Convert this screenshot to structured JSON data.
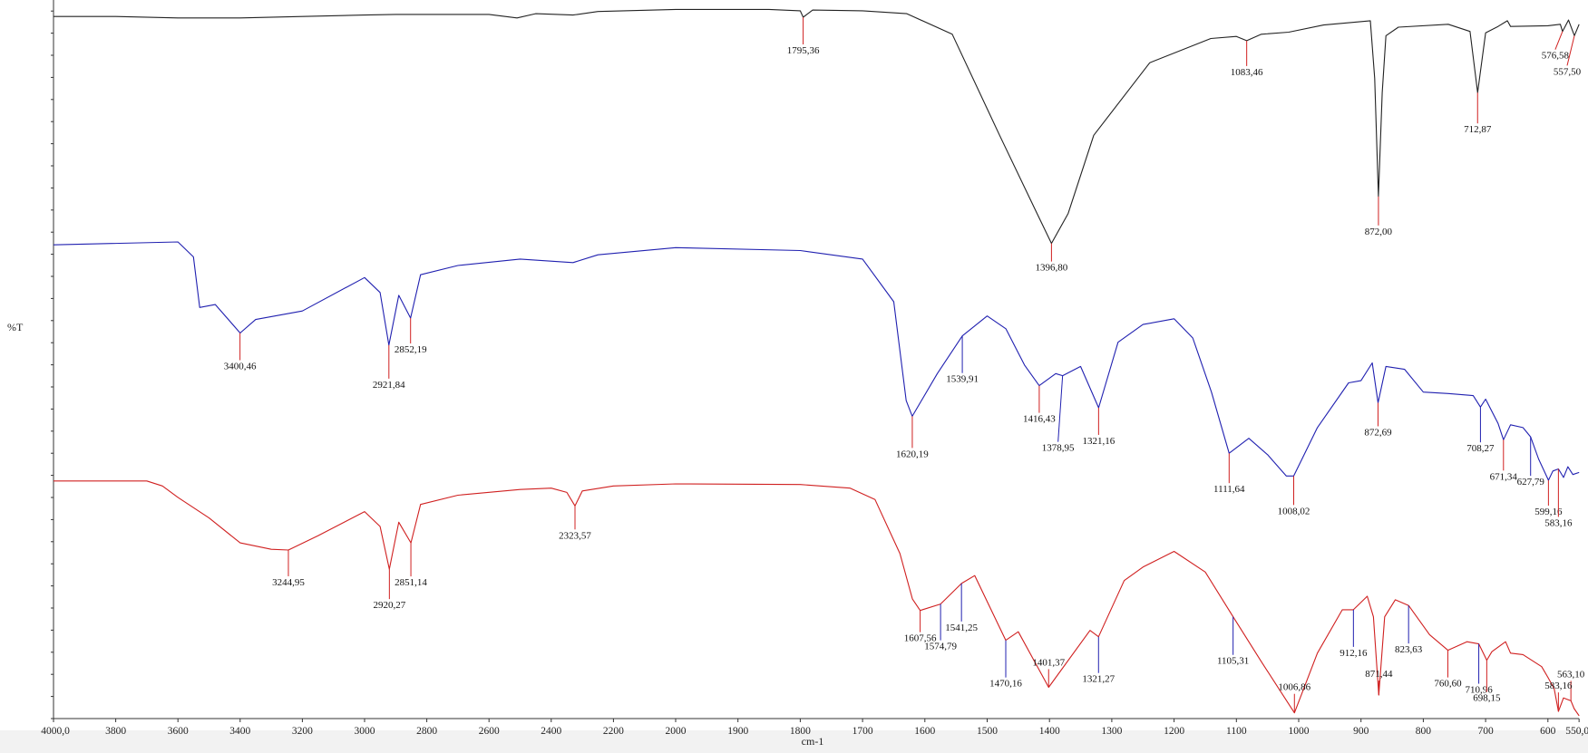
{
  "chart_data": {
    "type": "line",
    "title": "",
    "xlabel": "cm-1",
    "ylabel": "%T",
    "xlim": [
      4000,
      550
    ],
    "x_reversed": true,
    "x_scale_break": 2000,
    "ylim": [
      0,
      100
    ],
    "grid": false,
    "legend": "none",
    "x_ticks": [
      {
        "value": 4000,
        "label": "4000,0"
      },
      {
        "value": 3800,
        "label": "3800"
      },
      {
        "value": 3600,
        "label": "3600"
      },
      {
        "value": 3400,
        "label": "3400"
      },
      {
        "value": 3200,
        "label": "3200"
      },
      {
        "value": 3000,
        "label": "3000"
      },
      {
        "value": 2800,
        "label": "2800"
      },
      {
        "value": 2600,
        "label": "2600"
      },
      {
        "value": 2400,
        "label": "2400"
      },
      {
        "value": 2200,
        "label": "2200"
      },
      {
        "value": 2000,
        "label": "2000"
      },
      {
        "value": 1900,
        "label": "1900"
      },
      {
        "value": 1800,
        "label": "1800"
      },
      {
        "value": 1700,
        "label": "1700"
      },
      {
        "value": 1600,
        "label": "1600"
      },
      {
        "value": 1500,
        "label": "1500"
      },
      {
        "value": 1400,
        "label": "1400"
      },
      {
        "value": 1300,
        "label": "1300"
      },
      {
        "value": 1200,
        "label": "1200"
      },
      {
        "value": 1100,
        "label": "1100"
      },
      {
        "value": 1000,
        "label": "1000"
      },
      {
        "value": 900,
        "label": "900"
      },
      {
        "value": 800,
        "label": "800"
      },
      {
        "value": 700,
        "label": "700"
      },
      {
        "value": 600,
        "label": "600"
      },
      {
        "value": 550,
        "label": "550,0"
      }
    ],
    "series": [
      {
        "color": "#222222",
        "points": [
          [
            4000,
            98.7
          ],
          [
            3800,
            98.7
          ],
          [
            3600,
            98.5
          ],
          [
            3400,
            98.5
          ],
          [
            3200,
            98.7
          ],
          [
            3000,
            98.9
          ],
          [
            2900,
            99.0
          ],
          [
            2600,
            99.0
          ],
          [
            2510,
            98.5
          ],
          [
            2450,
            99.1
          ],
          [
            2330,
            98.9
          ],
          [
            2250,
            99.4
          ],
          [
            2000,
            99.7
          ],
          [
            1850,
            99.7
          ],
          [
            1800,
            99.5
          ],
          [
            1795.36,
            98.6
          ],
          [
            1780,
            99.6
          ],
          [
            1700,
            99.5
          ],
          [
            1629,
            99.1
          ],
          [
            1556,
            96.2
          ],
          [
            1480,
            82
          ],
          [
            1420,
            71
          ],
          [
            1396.8,
            66.8
          ],
          [
            1370,
            71
          ],
          [
            1329,
            82.0
          ],
          [
            1239,
            92.2
          ],
          [
            1141,
            95.6
          ],
          [
            1100,
            95.9
          ],
          [
            1083.46,
            95.3
          ],
          [
            1060,
            96.2
          ],
          [
            1016,
            96.5
          ],
          [
            960,
            97.5
          ],
          [
            885,
            98.1
          ],
          [
            878,
            90
          ],
          [
            872.0,
            73.4
          ],
          [
            866,
            88
          ],
          [
            860,
            96
          ],
          [
            840,
            97.2
          ],
          [
            760,
            97.6
          ],
          [
            725,
            96.6
          ],
          [
            712.87,
            88.0
          ],
          [
            700,
            96.4
          ],
          [
            680,
            97.3
          ],
          [
            665,
            98.1
          ],
          [
            660,
            97.3
          ],
          [
            600,
            97.4
          ],
          [
            580,
            97.6
          ],
          [
            576.58,
            96.6
          ],
          [
            567,
            98.2
          ],
          [
            557.5,
            96.0
          ],
          [
            550,
            97.6
          ]
        ]
      },
      {
        "color": "#2020b0",
        "points": [
          [
            4000,
            66.6
          ],
          [
            3600,
            67.0
          ],
          [
            3550,
            64.9
          ],
          [
            3530,
            57.8
          ],
          [
            3480,
            58.2
          ],
          [
            3400,
            54.2
          ],
          [
            3350,
            56.1
          ],
          [
            3200,
            57.3
          ],
          [
            3000,
            62.0
          ],
          [
            2950,
            59.9
          ],
          [
            2921.84,
            52.5
          ],
          [
            2890,
            59.5
          ],
          [
            2852.19,
            56.3
          ],
          [
            2820,
            62.4
          ],
          [
            2700,
            63.7
          ],
          [
            2500,
            64.6
          ],
          [
            2330,
            64.1
          ],
          [
            2250,
            65.2
          ],
          [
            2000,
            66.2
          ],
          [
            1800,
            65.8
          ],
          [
            1700,
            64.6
          ],
          [
            1650,
            58.6
          ],
          [
            1630,
            44.7
          ],
          [
            1620.19,
            42.5
          ],
          [
            1580,
            48.5
          ],
          [
            1539.91,
            53.8
          ],
          [
            1500,
            56.6
          ],
          [
            1470,
            54.8
          ],
          [
            1440,
            49.7
          ],
          [
            1416.43,
            46.8
          ],
          [
            1390,
            48.5
          ],
          [
            1378.95,
            48.2
          ],
          [
            1350,
            49.5
          ],
          [
            1321.16,
            43.7
          ],
          [
            1290,
            52.9
          ],
          [
            1250,
            55.4
          ],
          [
            1200,
            56.2
          ],
          [
            1170,
            53.5
          ],
          [
            1140,
            45.9
          ],
          [
            1111.64,
            37.3
          ],
          [
            1080,
            39.4
          ],
          [
            1050,
            37.1
          ],
          [
            1020,
            34.1
          ],
          [
            1008.02,
            34.1
          ],
          [
            970,
            40.9
          ],
          [
            920,
            47.2
          ],
          [
            900,
            47.5
          ],
          [
            882,
            50.0
          ],
          [
            872.69,
            44.4
          ],
          [
            860,
            49.5
          ],
          [
            830,
            49.1
          ],
          [
            800,
            45.9
          ],
          [
            760,
            45.7
          ],
          [
            720,
            45.4
          ],
          [
            708.27,
            43.8
          ],
          [
            700,
            44.9
          ],
          [
            680,
            41.5
          ],
          [
            671.34,
            39.2
          ],
          [
            660,
            41.3
          ],
          [
            640,
            40.9
          ],
          [
            627.79,
            39.6
          ],
          [
            615,
            36.5
          ],
          [
            599.16,
            33.5
          ],
          [
            592,
            34.8
          ],
          [
            583.16,
            35.1
          ],
          [
            575,
            33.9
          ],
          [
            568,
            35.4
          ],
          [
            560,
            34.3
          ],
          [
            550,
            34.6
          ]
        ]
      },
      {
        "color": "#d02020",
        "points": [
          [
            4000,
            33.4
          ],
          [
            3700,
            33.4
          ],
          [
            3650,
            32.7
          ],
          [
            3600,
            31.1
          ],
          [
            3500,
            28.2
          ],
          [
            3400,
            24.7
          ],
          [
            3300,
            23.8
          ],
          [
            3244.95,
            23.7
          ],
          [
            3150,
            25.7
          ],
          [
            3000,
            29.1
          ],
          [
            2950,
            27.0
          ],
          [
            2920.27,
            21.0
          ],
          [
            2890,
            27.6
          ],
          [
            2851.14,
            24.7
          ],
          [
            2820,
            30.1
          ],
          [
            2700,
            31.4
          ],
          [
            2500,
            32.2
          ],
          [
            2400,
            32.4
          ],
          [
            2350,
            31.8
          ],
          [
            2323.57,
            29.9
          ],
          [
            2300,
            32.0
          ],
          [
            2200,
            32.7
          ],
          [
            2000,
            33.0
          ],
          [
            1800,
            32.9
          ],
          [
            1720,
            32.4
          ],
          [
            1680,
            30.8
          ],
          [
            1640,
            23.2
          ],
          [
            1620,
            16.8
          ],
          [
            1607.56,
            15.2
          ],
          [
            1574.79,
            16.1
          ],
          [
            1541.25,
            19.0
          ],
          [
            1520,
            20.1
          ],
          [
            1470.16,
            11.0
          ],
          [
            1450,
            12.2
          ],
          [
            1401.37,
            4.4
          ],
          [
            1335,
            12.4
          ],
          [
            1321.27,
            11.5
          ],
          [
            1280,
            19.4
          ],
          [
            1250,
            21.3
          ],
          [
            1200,
            23.5
          ],
          [
            1150,
            20.6
          ],
          [
            1105.31,
            14.3
          ],
          [
            1060,
            8.0
          ],
          [
            1006.86,
            0.8
          ],
          [
            970,
            9.2
          ],
          [
            930,
            15.3
          ],
          [
            912.16,
            15.3
          ],
          [
            890,
            17.2
          ],
          [
            880,
            14.3
          ],
          [
            871.44,
            3.3
          ],
          [
            862,
            14.3
          ],
          [
            845,
            16.7
          ],
          [
            823.63,
            15.9
          ],
          [
            790,
            11.8
          ],
          [
            760.6,
            9.6
          ],
          [
            730,
            10.8
          ],
          [
            710.96,
            10.5
          ],
          [
            698.15,
            8.2
          ],
          [
            690,
            9.4
          ],
          [
            668,
            10.8
          ],
          [
            660,
            9.2
          ],
          [
            640,
            9.0
          ],
          [
            610,
            7.3
          ],
          [
            600,
            5.8
          ],
          [
            590,
            4.2
          ],
          [
            583.16,
            1.0
          ],
          [
            575,
            2.9
          ],
          [
            563.1,
            2.5
          ],
          [
            558,
            1.4
          ],
          [
            550,
            0.4
          ]
        ]
      }
    ],
    "peaks": [
      {
        "series": 0,
        "x": 1795.36,
        "y": 98.6,
        "label": "1795,36",
        "line_color": "#d02020"
      },
      {
        "series": 0,
        "x": 1396.8,
        "y": 66.8,
        "label": "1396,80",
        "line_color": "#d02020"
      },
      {
        "series": 0,
        "x": 1083.46,
        "y": 95.3,
        "label": "1083,46",
        "line_color": "#d02020"
      },
      {
        "series": 0,
        "x": 872.0,
        "y": 73.4,
        "label": "872,00",
        "line_color": "#d02020"
      },
      {
        "series": 0,
        "x": 712.87,
        "y": 88.0,
        "label": "712,87",
        "line_color": "#d02020"
      },
      {
        "series": 0,
        "x": 576.58,
        "y": 96.6,
        "label": "576,58",
        "line_color": "#d02020"
      },
      {
        "series": 0,
        "x": 557.5,
        "y": 96.0,
        "label": "557,50",
        "line_color": "#d02020"
      },
      {
        "series": 1,
        "x": 3400.46,
        "y": 54.2,
        "label": "3400,46",
        "line_color": "#d02020"
      },
      {
        "series": 1,
        "x": 2921.84,
        "y": 52.5,
        "label": "2921,84",
        "line_color": "#d02020"
      },
      {
        "series": 1,
        "x": 2852.19,
        "y": 56.3,
        "label": "2852,19",
        "line_color": "#d02020"
      },
      {
        "series": 1,
        "x": 1620.19,
        "y": 42.5,
        "label": "1620,19",
        "line_color": "#d02020"
      },
      {
        "series": 1,
        "x": 1539.91,
        "y": 53.8,
        "label": "1539,91",
        "line_color": "#2020b0"
      },
      {
        "series": 1,
        "x": 1416.43,
        "y": 46.8,
        "label": "1416,43",
        "line_color": "#d02020"
      },
      {
        "series": 1,
        "x": 1378.95,
        "y": 48.2,
        "label": "1378,95",
        "line_color": "#2020b0"
      },
      {
        "series": 1,
        "x": 1321.16,
        "y": 43.7,
        "label": "1321,16",
        "line_color": "#d02020"
      },
      {
        "series": 1,
        "x": 1111.64,
        "y": 37.3,
        "label": "1111,64",
        "line_color": "#d02020"
      },
      {
        "series": 1,
        "x": 1008.02,
        "y": 34.1,
        "label": "1008,02",
        "line_color": "#d02020"
      },
      {
        "series": 1,
        "x": 872.69,
        "y": 44.4,
        "label": "872,69",
        "line_color": "#d02020"
      },
      {
        "series": 1,
        "x": 708.27,
        "y": 43.8,
        "label": "708,27",
        "line_color": "#2020b0"
      },
      {
        "series": 1,
        "x": 671.34,
        "y": 39.2,
        "label": "671,34",
        "line_color": "#d02020"
      },
      {
        "series": 1,
        "x": 627.79,
        "y": 39.6,
        "label": "627,79",
        "line_color": "#2020b0"
      },
      {
        "series": 1,
        "x": 599.16,
        "y": 33.5,
        "label": "599,16",
        "line_color": "#d02020"
      },
      {
        "series": 1,
        "x": 583.16,
        "y": 35.1,
        "label": "583,16",
        "line_color": "#d02020"
      },
      {
        "series": 2,
        "x": 3244.95,
        "y": 23.7,
        "label": "3244,95",
        "line_color": "#d02020"
      },
      {
        "series": 2,
        "x": 2920.27,
        "y": 21.0,
        "label": "2920,27",
        "line_color": "#d02020"
      },
      {
        "series": 2,
        "x": 2851.14,
        "y": 24.7,
        "label": "2851,14",
        "line_color": "#d02020"
      },
      {
        "series": 2,
        "x": 2323.57,
        "y": 29.9,
        "label": "2323,57",
        "line_color": "#d02020"
      },
      {
        "series": 2,
        "x": 1607.56,
        "y": 15.2,
        "label": "1607,56",
        "line_color": "#d02020"
      },
      {
        "series": 2,
        "x": 1574.79,
        "y": 16.1,
        "label": "1574,79",
        "line_color": "#2020b0"
      },
      {
        "series": 2,
        "x": 1541.25,
        "y": 19.0,
        "label": "1541,25",
        "line_color": "#2020b0"
      },
      {
        "series": 2,
        "x": 1470.16,
        "y": 11.0,
        "label": "1470,16",
        "line_color": "#2020b0"
      },
      {
        "series": 2,
        "x": 1401.37,
        "y": 4.4,
        "label": "1401,37",
        "line_color": "#d02020"
      },
      {
        "series": 2,
        "x": 1321.27,
        "y": 11.5,
        "label": "1321,27",
        "line_color": "#2020b0"
      },
      {
        "series": 2,
        "x": 1105.31,
        "y": 14.3,
        "label": "1105,31",
        "line_color": "#2020b0"
      },
      {
        "series": 2,
        "x": 1006.86,
        "y": 0.8,
        "label": "1006,86",
        "line_color": "#d02020"
      },
      {
        "series": 2,
        "x": 912.16,
        "y": 15.3,
        "label": "912,16",
        "line_color": "#2020b0"
      },
      {
        "series": 2,
        "x": 871.44,
        "y": 3.3,
        "label": "871,44",
        "line_color": "#d02020"
      },
      {
        "series": 2,
        "x": 823.63,
        "y": 15.9,
        "label": "823,63",
        "line_color": "#2020b0"
      },
      {
        "series": 2,
        "x": 760.6,
        "y": 9.6,
        "label": "760,60",
        "line_color": "#d02020"
      },
      {
        "series": 2,
        "x": 710.96,
        "y": 10.5,
        "label": "710,96",
        "line_color": "#2020b0"
      },
      {
        "series": 2,
        "x": 698.15,
        "y": 8.2,
        "label": "698,15",
        "line_color": "#d02020"
      },
      {
        "series": 2,
        "x": 563.1,
        "y": 2.5,
        "label": "563,10",
        "line_color": "#d02020"
      },
      {
        "series": 2,
        "x": 583.16,
        "y": 1.0,
        "label": "583,16",
        "line_color": "#d02020"
      }
    ]
  }
}
